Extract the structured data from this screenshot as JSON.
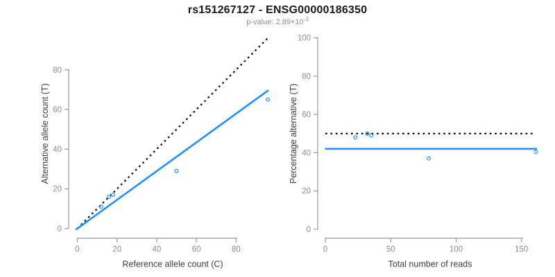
{
  "header": {
    "title": "rs151267127 - ENSG00000186350",
    "subtitle_label": "p-value: ",
    "subtitle_mantissa": "2.89",
    "subtitle_base": "×10",
    "subtitle_exponent": "-3"
  },
  "colors": {
    "fit_blue": "#1e8fff",
    "point_blue": "#1e8fff",
    "identity_black": "#000000",
    "axis_gray": "#999999",
    "tick_label_gray": "#8c8c8c",
    "axis_title_gray": "#3d3d3d",
    "subtitle_gray": "#8c8c8c",
    "title_black": "#1a1a1a"
  },
  "chart_data": [
    {
      "name": "allele-counts-scatter",
      "type": "scatter",
      "xlabel": "Reference allele count (C)",
      "ylabel": "Alternative allele count (T)",
      "xticks": [
        0,
        20,
        40,
        60,
        80
      ],
      "yticks": [
        0,
        20,
        40,
        60,
        80
      ],
      "xlim": [
        -4,
        100
      ],
      "ylim": [
        -4,
        100
      ],
      "grid": false,
      "points": [
        {
          "x": 12,
          "y": 11
        },
        {
          "x": 16,
          "y": 16
        },
        {
          "x": 18,
          "y": 17
        },
        {
          "x": 50,
          "y": 29
        },
        {
          "x": 96,
          "y": 65
        }
      ],
      "lines": [
        {
          "name": "identity-line",
          "style": "dotted",
          "color_key": "identity_black",
          "width": 2.2,
          "x1": 0,
          "y1": 0,
          "x2": 95.8,
          "y2": 95.8
        },
        {
          "name": "fit-line",
          "style": "solid",
          "color_key": "fit_blue",
          "width": 2.6,
          "x1": -0.8,
          "y1": -0.6,
          "x2": 96.3,
          "y2": 69.7
        }
      ]
    },
    {
      "name": "percentage-alternative-scatter",
      "type": "scatter",
      "xlabel": "Total number of reads",
      "ylabel": "Percentage alternative (T)",
      "xticks": [
        0,
        50,
        100,
        150
      ],
      "yticks": [
        0,
        20,
        40,
        60,
        80,
        100
      ],
      "xlim": [
        -7,
        168
      ],
      "ylim": [
        -4,
        104
      ],
      "grid": false,
      "points": [
        {
          "x": 23,
          "y": 48
        },
        {
          "x": 32,
          "y": 50
        },
        {
          "x": 35,
          "y": 49
        },
        {
          "x": 79,
          "y": 37
        },
        {
          "x": 161,
          "y": 40.4
        }
      ],
      "lines": [
        {
          "name": "expected-50-line",
          "style": "dotted",
          "color_key": "identity_black",
          "width": 2.2,
          "x1": 0,
          "y1": 50,
          "x2": 160,
          "y2": 50
        },
        {
          "name": "fit-line",
          "style": "solid",
          "color_key": "fit_blue",
          "width": 2.6,
          "x1": -0.3,
          "y1": 42,
          "x2": 161.8,
          "y2": 42
        }
      ]
    }
  ]
}
